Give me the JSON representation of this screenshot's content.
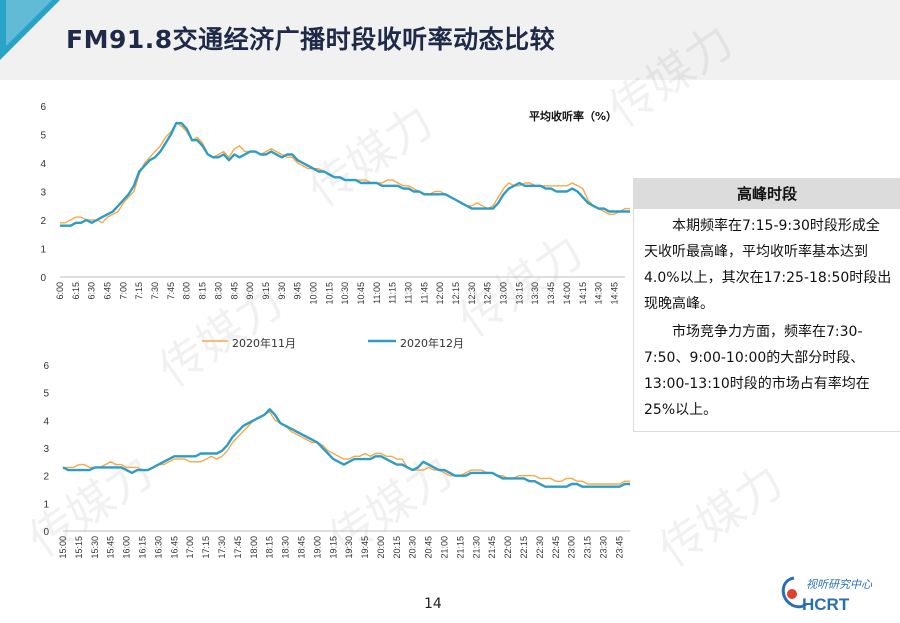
{
  "page": {
    "title": "FM91.8交通经济广播时段收听率动态比较",
    "page_number": "14",
    "watermark_text": "传媒力",
    "logo": {
      "cn": "视听研究中心",
      "en": "HCRT"
    },
    "accent_color": "#29a3c6"
  },
  "panel": {
    "heading": "高峰时段",
    "paragraphs": [
      "本期频率在7:15-9:30时段形成全天收听最高峰，平均收听率基本达到4.0%以上，其次在17:25-18:50时段出现晚高峰。",
      "市场竞争力方面，频率在7:30-7:50、9:00-10:00的大部分时段、13:00-13:10时段的市场占有率均在25%以上。"
    ]
  },
  "legend": [
    {
      "name": "2020年11月",
      "color": "#f5a94a"
    },
    {
      "name": "2020年12月",
      "color": "#2e9cc3"
    }
  ],
  "chart_data": [
    {
      "type": "line",
      "title": "平均收听率（%）",
      "ylim": [
        0,
        6
      ],
      "yticks": [
        0,
        1,
        2,
        3,
        4,
        5,
        6
      ],
      "x_start": "6:00",
      "x_end": "14:55",
      "x_step_minutes": 5,
      "xticks": [
        "6:00",
        "6:15",
        "6:30",
        "6:45",
        "7:00",
        "7:15",
        "7:30",
        "7:45",
        "8:00",
        "8:15",
        "8:30",
        "8:45",
        "9:00",
        "9:15",
        "9:30",
        "9:45",
        "10:00",
        "10:15",
        "10:30",
        "10:45",
        "11:00",
        "11:15",
        "11:30",
        "11:45",
        "12:00",
        "12:15",
        "12:30",
        "12:45",
        "13:00",
        "13:15",
        "13:30",
        "13:45",
        "14:00",
        "14:15",
        "14:30",
        "14:45"
      ],
      "grid": false,
      "series": [
        {
          "name": "2020年11月",
          "color": "#f5a94a",
          "values": [
            1.9,
            1.9,
            2.0,
            2.1,
            2.1,
            2.0,
            2.0,
            2.0,
            1.9,
            2.1,
            2.2,
            2.3,
            2.6,
            2.8,
            3.0,
            3.6,
            4.0,
            4.2,
            4.4,
            4.6,
            4.9,
            5.1,
            5.4,
            5.3,
            5.1,
            4.8,
            4.9,
            4.7,
            4.3,
            4.2,
            4.3,
            4.4,
            4.2,
            4.5,
            4.6,
            4.4,
            4.4,
            4.4,
            4.3,
            4.4,
            4.5,
            4.4,
            4.3,
            4.2,
            4.2,
            4.0,
            3.9,
            3.8,
            3.8,
            3.8,
            3.7,
            3.6,
            3.5,
            3.5,
            3.4,
            3.4,
            3.4,
            3.4,
            3.4,
            3.3,
            3.3,
            3.3,
            3.4,
            3.4,
            3.3,
            3.2,
            3.2,
            3.1,
            3.0,
            2.9,
            2.9,
            3.0,
            3.0,
            2.9,
            2.8,
            2.7,
            2.6,
            2.5,
            2.5,
            2.6,
            2.5,
            2.4,
            2.5,
            2.8,
            3.1,
            3.3,
            3.2,
            3.2,
            3.3,
            3.3,
            3.2,
            3.2,
            3.2,
            3.2,
            3.2,
            3.2,
            3.2,
            3.3,
            3.2,
            3.1,
            2.7,
            2.5,
            2.4,
            2.3,
            2.2,
            2.2,
            2.3,
            2.4,
            2.4,
            2.3,
            2.3,
            2.3,
            2.3,
            2.3,
            2.3,
            2.3,
            2.3,
            2.3
          ]
        },
        {
          "name": "2020年12月",
          "color": "#2e9cc3",
          "values": [
            1.8,
            1.8,
            1.8,
            1.9,
            1.9,
            2.0,
            1.9,
            2.0,
            2.1,
            2.2,
            2.3,
            2.5,
            2.7,
            2.9,
            3.2,
            3.7,
            3.9,
            4.1,
            4.2,
            4.4,
            4.7,
            5.0,
            5.4,
            5.4,
            5.2,
            4.8,
            4.8,
            4.6,
            4.3,
            4.2,
            4.2,
            4.3,
            4.1,
            4.3,
            4.2,
            4.3,
            4.4,
            4.4,
            4.3,
            4.3,
            4.4,
            4.3,
            4.2,
            4.3,
            4.3,
            4.1,
            4.0,
            3.9,
            3.8,
            3.7,
            3.7,
            3.6,
            3.5,
            3.5,
            3.4,
            3.4,
            3.4,
            3.3,
            3.3,
            3.3,
            3.3,
            3.2,
            3.2,
            3.2,
            3.2,
            3.1,
            3.1,
            3.0,
            3.0,
            2.9,
            2.9,
            2.9,
            2.9,
            2.9,
            2.8,
            2.7,
            2.6,
            2.5,
            2.4,
            2.4,
            2.4,
            2.4,
            2.4,
            2.6,
            2.9,
            3.1,
            3.2,
            3.3,
            3.2,
            3.2,
            3.2,
            3.2,
            3.1,
            3.1,
            3.0,
            3.0,
            3.0,
            3.1,
            3.0,
            2.8,
            2.6,
            2.5,
            2.4,
            2.4,
            2.3,
            2.3,
            2.3,
            2.3,
            2.3,
            2.4,
            2.3,
            2.3,
            2.3,
            2.3,
            2.3,
            2.3,
            2.3,
            2.3
          ]
        }
      ]
    },
    {
      "type": "line",
      "ylim": [
        0,
        6
      ],
      "yticks": [
        0,
        1,
        2,
        3,
        4,
        5,
        6
      ],
      "x_start": "15:00",
      "x_end": "23:55",
      "x_step_minutes": 5,
      "xticks": [
        "15:00",
        "15:15",
        "15:30",
        "15:45",
        "16:00",
        "16:15",
        "16:30",
        "16:45",
        "17:00",
        "17:15",
        "17:30",
        "17:45",
        "18:00",
        "18:15",
        "18:30",
        "18:45",
        "19:00",
        "19:15",
        "19:30",
        "19:45",
        "20:00",
        "20:15",
        "20:30",
        "20:45",
        "21:00",
        "21:15",
        "21:30",
        "21:45",
        "22:00",
        "22:15",
        "22:30",
        "22:45",
        "23:00",
        "23:15",
        "23:30",
        "23:45"
      ],
      "grid": false,
      "series": [
        {
          "name": "2020年11月",
          "color": "#f5a94a",
          "values": [
            2.3,
            2.3,
            2.3,
            2.4,
            2.4,
            2.3,
            2.3,
            2.3,
            2.4,
            2.5,
            2.4,
            2.4,
            2.3,
            2.3,
            2.3,
            2.2,
            2.2,
            2.3,
            2.4,
            2.4,
            2.5,
            2.6,
            2.6,
            2.6,
            2.5,
            2.5,
            2.5,
            2.6,
            2.7,
            2.6,
            2.7,
            2.9,
            3.2,
            3.4,
            3.6,
            3.8,
            4.0,
            4.1,
            4.2,
            4.3,
            4.0,
            3.9,
            3.8,
            3.6,
            3.5,
            3.4,
            3.3,
            3.2,
            3.2,
            3.1,
            2.9,
            2.8,
            2.7,
            2.6,
            2.6,
            2.7,
            2.7,
            2.8,
            2.7,
            2.8,
            2.8,
            2.7,
            2.7,
            2.6,
            2.6,
            2.3,
            2.2,
            2.2,
            2.2,
            2.3,
            2.2,
            2.2,
            2.1,
            2.0,
            2.0,
            2.0,
            2.1,
            2.2,
            2.2,
            2.2,
            2.1,
            2.1,
            2.0,
            2.0,
            1.9,
            1.9,
            2.0,
            2.0,
            2.0,
            2.0,
            1.9,
            1.9,
            1.9,
            1.8,
            1.8,
            1.9,
            1.9,
            1.8,
            1.8,
            1.7,
            1.7,
            1.7,
            1.7,
            1.7,
            1.7,
            1.7,
            1.8,
            1.8,
            1.8,
            1.9,
            2.0,
            2.0,
            2.0,
            2.0,
            2.0,
            1.8
          ]
        },
        {
          "name": "2020年12月",
          "color": "#2e9cc3",
          "values": [
            2.3,
            2.2,
            2.2,
            2.2,
            2.2,
            2.2,
            2.3,
            2.3,
            2.3,
            2.3,
            2.3,
            2.3,
            2.2,
            2.1,
            2.2,
            2.2,
            2.2,
            2.3,
            2.4,
            2.5,
            2.6,
            2.7,
            2.7,
            2.7,
            2.7,
            2.7,
            2.8,
            2.8,
            2.8,
            2.8,
            2.9,
            3.1,
            3.4,
            3.6,
            3.8,
            3.9,
            4.0,
            4.1,
            4.2,
            4.4,
            4.2,
            3.9,
            3.8,
            3.7,
            3.6,
            3.5,
            3.4,
            3.3,
            3.2,
            3.0,
            2.8,
            2.6,
            2.5,
            2.4,
            2.5,
            2.6,
            2.6,
            2.6,
            2.6,
            2.7,
            2.7,
            2.6,
            2.5,
            2.4,
            2.4,
            2.3,
            2.2,
            2.3,
            2.5,
            2.4,
            2.3,
            2.2,
            2.2,
            2.1,
            2.0,
            2.0,
            2.0,
            2.1,
            2.1,
            2.1,
            2.1,
            2.1,
            2.0,
            1.9,
            1.9,
            1.9,
            1.9,
            1.9,
            1.8,
            1.8,
            1.7,
            1.6,
            1.6,
            1.6,
            1.6,
            1.6,
            1.7,
            1.7,
            1.6,
            1.6,
            1.6,
            1.6,
            1.6,
            1.6,
            1.6,
            1.6,
            1.7,
            1.7,
            1.8,
            1.8,
            1.8,
            1.8,
            1.7,
            1.7,
            1.6,
            1.2
          ]
        }
      ]
    }
  ]
}
